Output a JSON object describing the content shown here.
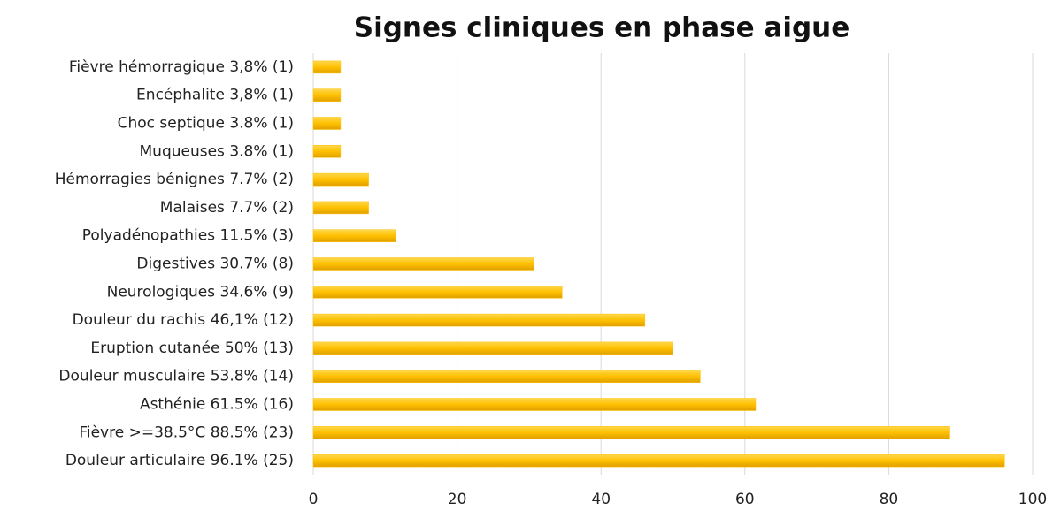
{
  "chart_data": {
    "type": "bar",
    "orientation": "horizontal",
    "title": "Signes cliniques en phase aigue",
    "categories": [
      "Fièvre hémorragique 3,8% (1)",
      "Encéphalite  3,8% (1)",
      "Choc septique 3.8% (1)",
      "Muqueuses 3.8% (1)",
      "Hémorragies bénignes 7.7% (2)",
      "Malaises 7.7% (2)",
      "Polyadénopathies 11.5% (3)",
      "Digestives 30.7% (8)",
      "Neurologiques 34.6% (9)",
      "Douleur du rachis 46,1% (12)",
      "Eruption cutanée 50% (13)",
      "Douleur musculaire 53.8% (14)",
      "Asthénie 61.5% (16)",
      "Fièvre >=38.5°C 88.5% (23)",
      "Douleur articulaire 96.1% (25)"
    ],
    "values": [
      3.8,
      3.8,
      3.8,
      3.8,
      7.7,
      7.7,
      11.5,
      30.7,
      34.6,
      46.1,
      50,
      53.8,
      61.5,
      88.5,
      96.1
    ],
    "color": "#ffc000",
    "xlim": [
      0,
      100
    ],
    "xticks": [
      0,
      20,
      40,
      60,
      80,
      100
    ],
    "grid": true
  }
}
